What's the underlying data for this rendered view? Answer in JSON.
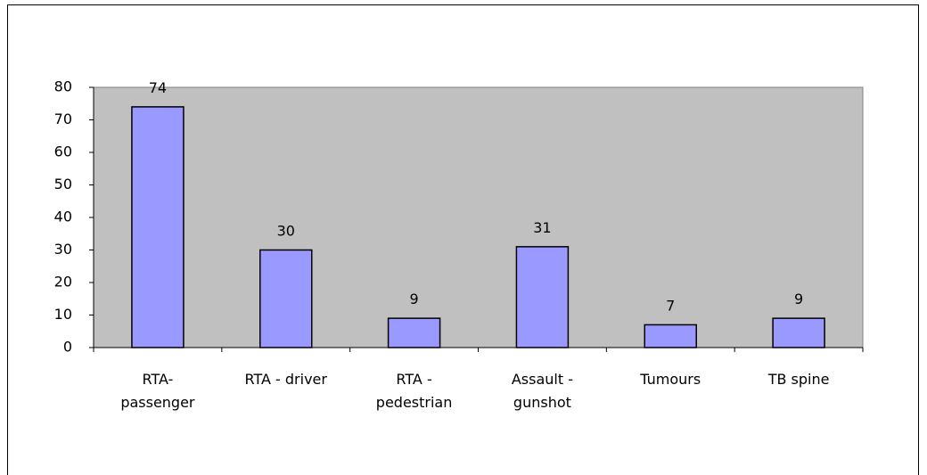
{
  "chart_data": {
    "type": "bar",
    "categories": [
      "RTA-\npassenger",
      "RTA - driver",
      "RTA -\npedestrian",
      "Assault -\ngunshot",
      "Tumours",
      "TB spine"
    ],
    "values": [
      74,
      30,
      9,
      31,
      7,
      9
    ],
    "color": "#9999ff",
    "ylim": [
      0,
      80
    ],
    "yticks": [
      0,
      10,
      20,
      30,
      40,
      50,
      60,
      70,
      80
    ],
    "grid": false,
    "data_labels": true
  }
}
